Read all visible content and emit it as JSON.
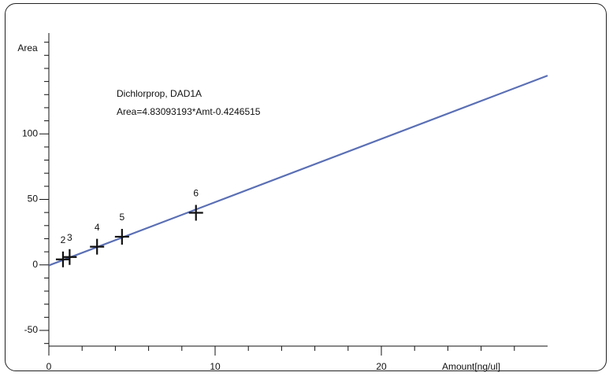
{
  "chart_data": {
    "type": "scatter",
    "annotations": [
      "Dichlorprop, DAD1A",
      "Area=4.83093193*Amt-0.4246515"
    ],
    "x_label": "Amount[ng/ul]",
    "y_label": "Area",
    "xlim": [
      0,
      30
    ],
    "ylim": [
      -62,
      177
    ],
    "xticks": [
      0,
      10,
      20
    ],
    "yticks": [
      -50,
      0,
      50,
      100
    ],
    "xminorticks": [
      2,
      4,
      6,
      8,
      12,
      14,
      16,
      18,
      22,
      24,
      26,
      28
    ],
    "yminorticks": [
      -60,
      -40,
      -30,
      -20,
      -10,
      10,
      20,
      30,
      40,
      60,
      70,
      80,
      90,
      110,
      120,
      130,
      140,
      150,
      160,
      170
    ],
    "fit": {
      "x": [
        0,
        30
      ],
      "values": [
        -0.4246515,
        144.5
      ],
      "color": "#5a6fb4"
    },
    "series": [
      {
        "color": "#111111",
        "x": [
          0.85,
          1.25,
          2.9,
          4.4,
          8.85
        ],
        "values": [
          4.2,
          6.0,
          13.9,
          21.5,
          39.8
        ],
        "labels": [
          "2",
          "3",
          "4",
          "5",
          "6"
        ]
      }
    ]
  }
}
